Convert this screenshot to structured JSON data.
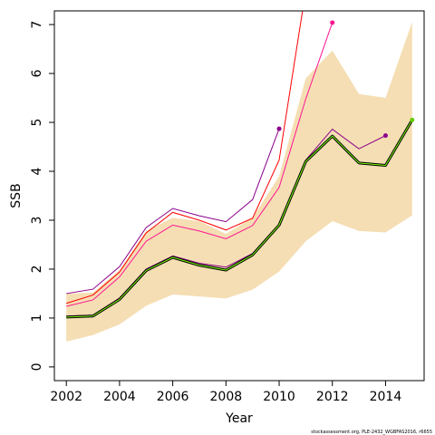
{
  "chart_data": {
    "type": "line",
    "xlabel": "Year",
    "ylabel": "SSB",
    "caption": "stockassessment.org, PLE-2432_WGBFAS2016, r6655",
    "xlim": [
      2001.55,
      2015.45
    ],
    "ylim": [
      -0.28,
      7.28
    ],
    "x_ticks": [
      "2002",
      "2004",
      "2006",
      "2008",
      "2010",
      "2012",
      "2014"
    ],
    "y_ticks": [
      "0",
      "1",
      "2",
      "3",
      "4",
      "5",
      "6",
      "7"
    ],
    "colors": {
      "band": "#f5deb3",
      "estimate": "#000000",
      "estimate_inner": "#7cfc00",
      "retro_red": "#ff0000",
      "retro_magenta": "#ff1493",
      "retro_purple": "#8b008b",
      "end_green": "#66cc00"
    },
    "confidence_band": {
      "x": [
        2002,
        2003,
        2004,
        2005,
        2006,
        2007,
        2008,
        2009,
        2010,
        2011,
        2012,
        2013,
        2014,
        2015
      ],
      "lower": [
        0.52,
        0.65,
        0.87,
        1.25,
        1.48,
        1.44,
        1.4,
        1.58,
        1.95,
        2.57,
        2.98,
        2.78,
        2.75,
        3.1
      ],
      "upper": [
        1.5,
        1.52,
        1.98,
        2.78,
        3.05,
        2.98,
        2.72,
        3.05,
        3.9,
        5.9,
        6.47,
        5.58,
        5.5,
        7.05
      ]
    },
    "estimate": {
      "x": [
        2002,
        2003,
        2004,
        2005,
        2006,
        2007,
        2008,
        2009,
        2010,
        2011,
        2012,
        2013,
        2014,
        2015
      ],
      "y": [
        1.02,
        1.04,
        1.38,
        1.97,
        2.24,
        2.08,
        1.98,
        2.29,
        2.9,
        4.2,
        4.72,
        4.17,
        4.12,
        5.05
      ]
    },
    "retrospective": [
      {
        "color_key": "retro_purple",
        "x": [
          2002,
          2003,
          2004,
          2005,
          2006,
          2007,
          2008,
          2009,
          2010
        ],
        "y": [
          1.5,
          1.59,
          2.05,
          2.85,
          3.24,
          3.09,
          2.97,
          3.42,
          4.87
        ]
      },
      {
        "color_key": "retro_red",
        "x": [
          2002,
          2003,
          2004,
          2005,
          2006,
          2007,
          2008,
          2009,
          2010,
          2011
        ],
        "y": [
          1.3,
          1.47,
          1.94,
          2.74,
          3.16,
          3.0,
          2.8,
          3.04,
          4.23,
          7.7
        ]
      },
      {
        "color_key": "retro_magenta",
        "x": [
          2002,
          2003,
          2004,
          2005,
          2006,
          2007,
          2008,
          2009,
          2010,
          2011,
          2012
        ],
        "y": [
          1.24,
          1.37,
          1.84,
          2.57,
          2.9,
          2.78,
          2.62,
          2.89,
          3.67,
          5.48,
          7.04
        ]
      },
      {
        "color_key": "retro_purple",
        "x": [
          2002,
          2003,
          2004,
          2005,
          2006,
          2007,
          2008,
          2009,
          2010,
          2011,
          2012,
          2013,
          2014
        ],
        "y": [
          1.04,
          1.06,
          1.41,
          2.0,
          2.27,
          2.12,
          2.04,
          2.32,
          2.92,
          4.23,
          4.86,
          4.46,
          4.73
        ]
      }
    ],
    "endpoints": [
      {
        "x": 2010,
        "y": 4.87,
        "color_key": "retro_purple"
      },
      {
        "x": 2012,
        "y": 7.04,
        "color_key": "retro_magenta"
      },
      {
        "x": 2014,
        "y": 4.73,
        "color_key": "retro_purple"
      },
      {
        "x": 2015,
        "y": 5.05,
        "color_key": "end_green"
      }
    ],
    "grid": false,
    "legend": "none"
  }
}
